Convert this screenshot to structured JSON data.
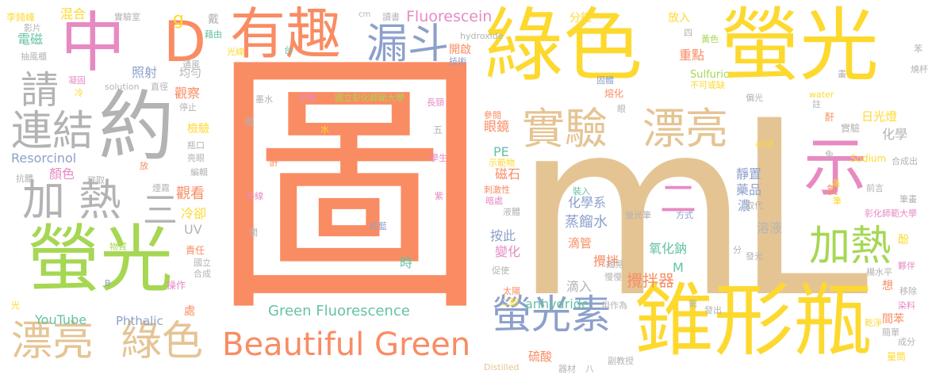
{
  "palette": {
    "orange": "#f98c63",
    "yellow": "#fdd92f",
    "green": "#a6d753",
    "tan": "#e5c494",
    "gray": "#b3b3b3",
    "pink": "#e78ac3",
    "blue": "#8da0cb",
    "teal": "#66c2a5",
    "background": "#ffffff"
  },
  "words": [
    {
      "text": "圖",
      "color": "#f98c63"
    },
    {
      "text": "mL",
      "color": "#e5c494"
    },
    {
      "text": "綠色",
      "color": "#fdd92f"
    },
    {
      "text": "螢光",
      "color": "#fdd92f"
    },
    {
      "text": "錐形瓶",
      "color": "#fdd92f"
    },
    {
      "text": "螢光",
      "color": "#a6d753"
    },
    {
      "text": "約",
      "color": "#b3b3b3"
    },
    {
      "text": "中",
      "color": "#e78ac3"
    },
    {
      "text": "有趣",
      "color": "#f98c63"
    },
    {
      "text": "D",
      "color": "#f98c63"
    },
    {
      "text": "示",
      "color": "#e78ac3"
    },
    {
      "text": "漏斗",
      "color": "#8da0cb"
    },
    {
      "text": "實驗",
      "color": "#e5c494"
    },
    {
      "text": "漂亮",
      "color": "#e5c494"
    },
    {
      "text": "漂亮",
      "color": "#e5c494"
    },
    {
      "text": "綠色",
      "color": "#e5c494"
    },
    {
      "text": "Beautiful Green",
      "color": "#f98c63"
    },
    {
      "text": "螢光素",
      "color": "#8da0cb"
    },
    {
      "text": "加熱",
      "color": "#a6d753"
    },
    {
      "text": "加 熱",
      "color": "#b3b3b3"
    },
    {
      "text": "三",
      "color": "#b3b3b3"
    },
    {
      "text": "請",
      "color": "#b3b3b3"
    },
    {
      "text": "連結",
      "color": "#b3b3b3"
    },
    {
      "text": "Green Fluorescence",
      "color": "#66c2a5"
    },
    {
      "text": "Fluorescein",
      "color": "#e78ac3"
    },
    {
      "text": "YouTube",
      "color": "#66c2a5"
    },
    {
      "text": "Phthalic",
      "color": "#8da0cb"
    },
    {
      "text": "anhydride",
      "color": "#66c2a5"
    },
    {
      "text": "Resorcinol",
      "color": "#8da0cb"
    },
    {
      "text": "hydroxide",
      "color": "#b3b3b3"
    },
    {
      "text": "Sulfuric",
      "color": "#a6d753"
    },
    {
      "text": "Sodium",
      "color": "#fdd92f"
    },
    {
      "text": "water",
      "color": "#fdd92f"
    },
    {
      "text": "acid",
      "color": "#fdd92f"
    },
    {
      "text": "solution",
      "color": "#b3b3b3"
    },
    {
      "text": "Distilled",
      "color": "#e5c494"
    },
    {
      "text": "二",
      "color": "#e78ac3"
    },
    {
      "text": "時",
      "color": "#66c2a5"
    },
    {
      "text": "M",
      "color": "#66c2a5"
    },
    {
      "text": "PE",
      "color": "#66c2a5"
    },
    {
      "text": "UV",
      "color": "#b3b3b3"
    },
    {
      "text": "cm",
      "color": "#b3b3b3"
    },
    {
      "text": "B",
      "color": "#8da0cb"
    },
    {
      "text": "g",
      "color": "#fdd92f"
    },
    {
      "text": "化學系",
      "color": "#8da0cb"
    },
    {
      "text": "蒸餾水",
      "color": "#8da0cb"
    },
    {
      "text": "氧化鈉",
      "color": "#66c2a5"
    },
    {
      "text": "攪拌器",
      "color": "#f98c63"
    },
    {
      "text": "攪拌",
      "color": "#f98c63"
    },
    {
      "text": "滴管",
      "color": "#f98c63"
    },
    {
      "text": "滴入",
      "color": "#b3b3b3"
    },
    {
      "text": "硫酸",
      "color": "#f98c63"
    },
    {
      "text": "變化",
      "color": "#e78ac3"
    },
    {
      "text": "按此",
      "color": "#8da0cb"
    },
    {
      "text": "磁石",
      "color": "#f98c63"
    },
    {
      "text": "眼鏡",
      "color": "#f98c63"
    },
    {
      "text": "化學",
      "color": "#b3b3b3"
    },
    {
      "text": "實驗",
      "color": "#b3b3b3"
    },
    {
      "text": "日光燈",
      "color": "#fdd92f"
    },
    {
      "text": "靜置",
      "color": "#8da0cb"
    },
    {
      "text": "藥品",
      "color": "#8da0cb"
    },
    {
      "text": "濃",
      "color": "#8da0cb"
    },
    {
      "text": "溶液",
      "color": "#b3b3b3"
    },
    {
      "text": "分鐘",
      "color": "#fdd92f"
    },
    {
      "text": "放入",
      "color": "#fdd92f"
    },
    {
      "text": "重點",
      "color": "#f98c63"
    },
    {
      "text": "熔化",
      "color": "#f98c63"
    },
    {
      "text": "混合",
      "color": "#fdd92f"
    },
    {
      "text": "電磁",
      "color": "#66c2a5"
    },
    {
      "text": "照射",
      "color": "#8da0cb"
    },
    {
      "text": "均勻",
      "color": "#b3b3b3"
    },
    {
      "text": "觀察",
      "color": "#f98c63"
    },
    {
      "text": "檢驗",
      "color": "#fdd92f"
    },
    {
      "text": "顏色",
      "color": "#e78ac3"
    },
    {
      "text": "觀看",
      "color": "#f98c63"
    },
    {
      "text": "冷卻",
      "color": "#fdd92f"
    },
    {
      "text": "戴",
      "color": "#b3b3b3"
    },
    {
      "text": "藉由",
      "color": "#66c2a5"
    },
    {
      "text": "光線",
      "color": "#fdd92f"
    },
    {
      "text": "通風",
      "color": "#b3b3b3"
    },
    {
      "text": "直徑",
      "color": "#b3b3b3"
    },
    {
      "text": "停止",
      "color": "#b3b3b3"
    },
    {
      "text": "瓶口",
      "color": "#b3b3b3"
    },
    {
      "text": "亮眼",
      "color": "#b3b3b3"
    },
    {
      "text": "編輯",
      "color": "#b3b3b3"
    },
    {
      "text": "煙霧",
      "color": "#b3b3b3"
    },
    {
      "text": "物質",
      "color": "#a6d753"
    },
    {
      "text": "責任",
      "color": "#f98c63"
    },
    {
      "text": "國立",
      "color": "#b3b3b3"
    },
    {
      "text": "合成",
      "color": "#b3b3b3"
    },
    {
      "text": "操作",
      "color": "#e78ac3"
    },
    {
      "text": "處",
      "color": "#f98c63"
    },
    {
      "text": "李錡峰",
      "color": "#fdd92f"
    },
    {
      "text": "影片",
      "color": "#b3b3b3"
    },
    {
      "text": "抽風櫃",
      "color": "#b3b3b3"
    },
    {
      "text": "凝固",
      "color": "#e78ac3"
    },
    {
      "text": "冷",
      "color": "#fdd92f"
    },
    {
      "text": "抗體",
      "color": "#b3b3b3"
    },
    {
      "text": "秤取",
      "color": "#b3b3b3"
    },
    {
      "text": "放",
      "color": "#f98c63"
    },
    {
      "text": "光",
      "color": "#fdd92f"
    },
    {
      "text": "實驗室",
      "color": "#b3b3b3"
    },
    {
      "text": "讀書",
      "color": "#b3b3b3"
    },
    {
      "text": "台",
      "color": "#66c2a5"
    },
    {
      "text": "開啟",
      "color": "#f98c63"
    },
    {
      "text": "技術",
      "color": "#8da0cb"
    },
    {
      "text": "固體",
      "color": "#8da0cb"
    },
    {
      "text": "四",
      "color": "#b3b3b3"
    },
    {
      "text": "黃色",
      "color": "#a6d753"
    },
    {
      "text": "不可或缺",
      "color": "#fdd92f"
    },
    {
      "text": "偏光",
      "color": "#b3b3b3"
    },
    {
      "text": "註",
      "color": "#b3b3b3"
    },
    {
      "text": "酐",
      "color": "#f98c63"
    },
    {
      "text": "免",
      "color": "#b3b3b3"
    },
    {
      "text": "眼",
      "color": "#b3b3b3"
    },
    {
      "text": "參閱",
      "color": "#f98c63"
    },
    {
      "text": "示範物",
      "color": "#fdd92f"
    },
    {
      "text": "刺激性",
      "color": "#f98c63"
    },
    {
      "text": "暗處",
      "color": "#e78ac3"
    },
    {
      "text": "液體",
      "color": "#b3b3b3"
    },
    {
      "text": "裝入",
      "color": "#66c2a5"
    },
    {
      "text": "螢光筆",
      "color": "#b3b3b3"
    },
    {
      "text": "方式",
      "color": "#8da0cb"
    },
    {
      "text": "取代",
      "color": "#b3b3b3"
    },
    {
      "text": "氯",
      "color": "#f98c63"
    },
    {
      "text": "滿",
      "color": "#fdd92f"
    },
    {
      "text": "筆",
      "color": "#fdd92f"
    },
    {
      "text": "前言",
      "color": "#b3b3b3"
    },
    {
      "text": "筆畫",
      "color": "#b3b3b3"
    },
    {
      "text": "合成出",
      "color": "#b3b3b3"
    },
    {
      "text": "彰化師範大學",
      "color": "#e78ac3"
    },
    {
      "text": "國立彰化師範大學",
      "color": "#a6d753"
    },
    {
      "text": "酚",
      "color": "#fdd92f"
    },
    {
      "text": "夥伴",
      "color": "#e78ac3"
    },
    {
      "text": "分",
      "color": "#b3b3b3"
    },
    {
      "text": "發光",
      "color": "#b3b3b3"
    },
    {
      "text": "楊水平",
      "color": "#b3b3b3"
    },
    {
      "text": "想",
      "color": "#f98c63"
    },
    {
      "text": "移除",
      "color": "#b3b3b3"
    },
    {
      "text": "染料",
      "color": "#e78ac3"
    },
    {
      "text": "間苯",
      "color": "#f98c63"
    },
    {
      "text": "乾淨",
      "color": "#fdd92f"
    },
    {
      "text": "簡單",
      "color": "#b3b3b3"
    },
    {
      "text": "成分",
      "color": "#b3b3b3"
    },
    {
      "text": "量筒",
      "color": "#fdd92f"
    },
    {
      "text": "需",
      "color": "#b3b3b3"
    },
    {
      "text": "發出",
      "color": "#b3b3b3"
    },
    {
      "text": "用作為",
      "color": "#b3b3b3"
    },
    {
      "text": "副教授",
      "color": "#b3b3b3"
    },
    {
      "text": "器材",
      "color": "#b3b3b3"
    },
    {
      "text": "八",
      "color": "#b3b3b3"
    },
    {
      "text": "太陽",
      "color": "#f98c63"
    },
    {
      "text": "二酚",
      "color": "#fdd92f"
    },
    {
      "text": "促使",
      "color": "#b3b3b3"
    },
    {
      "text": "搖晃",
      "color": "#b3b3b3"
    },
    {
      "text": "慢慢",
      "color": "#b3b3b3"
    },
    {
      "text": "畫",
      "color": "#b3b3b3"
    },
    {
      "text": "燒杯",
      "color": "#b3b3b3"
    },
    {
      "text": "苯",
      "color": "#b3b3b3"
    },
    {
      "text": "墨水",
      "color": "#b3b3b3"
    },
    {
      "text": "步驟",
      "color": "#e78ac3"
    },
    {
      "text": "長頸",
      "color": "#e78ac3"
    },
    {
      "text": "燈",
      "color": "#b3b3b3"
    },
    {
      "text": "水",
      "color": "#fdd92f"
    },
    {
      "text": "關掉",
      "color": "#f98c63"
    },
    {
      "text": "五",
      "color": "#b3b3b3"
    },
    {
      "text": "酐",
      "color": "#f98c63"
    },
    {
      "text": "學生",
      "color": "#e78ac3"
    },
    {
      "text": "外線",
      "color": "#e78ac3"
    },
    {
      "text": "紫",
      "color": "#e78ac3"
    },
    {
      "text": "間",
      "color": "#b3b3b3"
    },
    {
      "text": "紅藍",
      "color": "#8da0cb"
    }
  ]
}
